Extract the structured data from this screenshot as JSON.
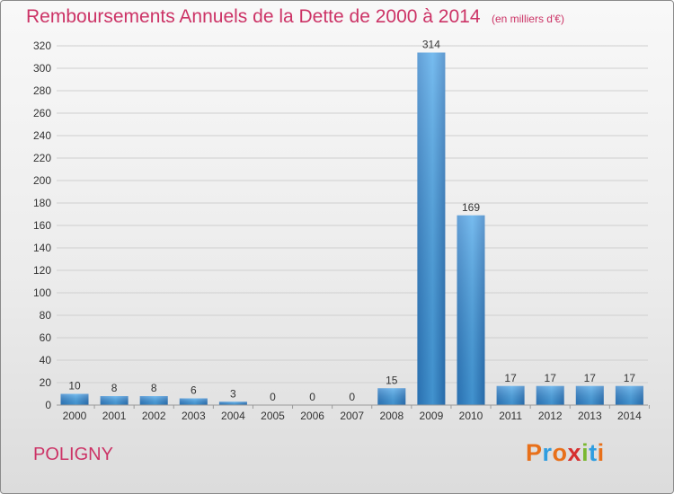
{
  "chart_data": {
    "type": "bar",
    "title": "Remboursements Annuels de la Dette de 2000 à 2014",
    "subtitle": "(en milliers d'€)",
    "categories": [
      "2000",
      "2001",
      "2002",
      "2003",
      "2004",
      "2005",
      "2006",
      "2007",
      "2008",
      "2009",
      "2010",
      "2011",
      "2012",
      "2013",
      "2014"
    ],
    "values": [
      10,
      8,
      8,
      6,
      3,
      0,
      0,
      0,
      15,
      314,
      169,
      17,
      17,
      17,
      17
    ],
    "ylim": [
      0,
      320
    ],
    "yticks": [
      0,
      20,
      40,
      60,
      80,
      100,
      120,
      140,
      160,
      180,
      200,
      220,
      240,
      260,
      280,
      300,
      320
    ],
    "grid": true,
    "bar_color": "#3a8fd6"
  },
  "place": "POLIGNY",
  "brand": {
    "text": "Proxiti",
    "colors": [
      "#e8701a",
      "#2e9de0",
      "#e8701a",
      "#d62f2f",
      "#7ab830",
      "#2e9de0",
      "#e8701a"
    ]
  }
}
